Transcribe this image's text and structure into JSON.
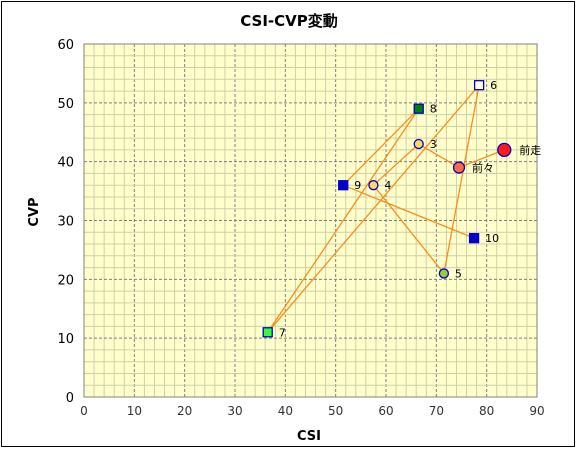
{
  "chart_data": {
    "type": "scatter",
    "title": "CSI-CVP変動",
    "xlabel": "CSI",
    "ylabel": "CVP",
    "xlim": [
      0,
      90
    ],
    "ylim": [
      0,
      60
    ],
    "xticks": [
      0,
      10,
      20,
      30,
      40,
      50,
      60,
      70,
      80,
      90
    ],
    "yticks": [
      0,
      10,
      20,
      30,
      40,
      50,
      60
    ],
    "grid": true,
    "points": [
      {
        "label": "前走",
        "x": 83.5,
        "y": 42,
        "marker": "circle",
        "fill": "#ff1a1a",
        "stroke": "#0000cc"
      },
      {
        "label": "前々",
        "x": 74.5,
        "y": 39,
        "marker": "circle",
        "fill": "#ff6b3a",
        "stroke": "#0000cc"
      },
      {
        "label": "3",
        "x": 66.5,
        "y": 43,
        "marker": "circle",
        "fill": "#ffd966",
        "stroke": "#0000cc"
      },
      {
        "label": "4",
        "x": 57.5,
        "y": 36,
        "marker": "circle",
        "fill": "#ffd966",
        "stroke": "#0000cc"
      },
      {
        "label": "5",
        "x": 71.5,
        "y": 21,
        "marker": "circle",
        "fill": "#99cc33",
        "stroke": "#0000cc"
      },
      {
        "label": "6",
        "x": 78.5,
        "y": 53,
        "marker": "square",
        "fill": "#ffffff",
        "stroke": "#0000cc"
      },
      {
        "label": "7",
        "x": 36.5,
        "y": 11,
        "marker": "square",
        "fill": "#33ff33",
        "stroke": "#0000cc"
      },
      {
        "label": "8",
        "x": 66.5,
        "y": 49,
        "marker": "square",
        "fill": "#008000",
        "stroke": "#0000cc"
      },
      {
        "label": "9",
        "x": 51.5,
        "y": 36,
        "marker": "square",
        "fill": "#0000cc",
        "stroke": "#0000cc"
      },
      {
        "label": "10",
        "x": 77.5,
        "y": 27,
        "marker": "square",
        "fill": "#0000cc",
        "stroke": "#0000cc"
      }
    ],
    "line_color": "#ff8c1a",
    "plot_background": "#ffffcc",
    "grid_color": "#808080"
  }
}
